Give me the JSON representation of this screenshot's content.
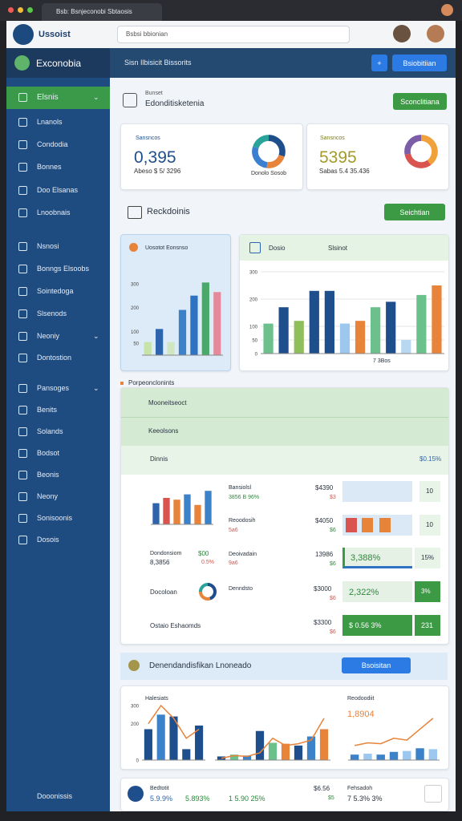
{
  "browser": {
    "tab": "Bsb: Bsnjeconobi Sbtaosis",
    "address": "Bsbsi bbionian"
  },
  "app": {
    "logo": "Ussoist",
    "brand": "Exconobia",
    "nav": "Sisn  Ilbisicit  Bissorits",
    "button": "Bsiobitiian"
  },
  "sidebar": {
    "items": [
      "Elsnis",
      "Lnanols",
      "Condodia",
      "Bonnes",
      "Doo Elsanas",
      "Lnoobnais",
      "Nsnosi",
      "Bonngs Elsoobs",
      "Sointedoga",
      "Slsenods",
      "Neoniy",
      "Dontostion",
      "Pansoges",
      "Benits",
      "Solands",
      "Bodsot",
      "Beonis",
      "Neony",
      "Sonisoonis",
      "Dosois"
    ],
    "footer": "Dooonissis"
  },
  "header": {
    "kicker": "Bunset",
    "title": "Edonditisketenia",
    "button": "Sconclitiana"
  },
  "kpis": [
    {
      "label": "Sansncos",
      "value": "0,395",
      "sub": "Abeso $ 5/ 3296",
      "note": "Donolo Sosob"
    },
    {
      "label": "Sansncos",
      "value": "5395",
      "sub": "Sabas 5.4 35.436"
    }
  ],
  "section1": {
    "title": "Reckdoinis",
    "button": "Seichtian"
  },
  "panels": {
    "left_title": "Uosotot Eonsnso",
    "right_tab1": "Dosio",
    "right_tab2": "Slsinot",
    "right_note": "7 3Bos"
  },
  "section2": {
    "title": "Porpeonclonints",
    "rows": [
      "Mooneitseoct",
      "Keeolsons"
    ],
    "summary": "Dinnis",
    "summary_value": "$0.15%"
  },
  "table": {
    "rows": [
      [
        "Bansiolsl",
        "3856 B 96%",
        "$4390",
        "$3",
        "10"
      ],
      [
        "Reoodosih",
        "5a6",
        "$4050",
        "$6",
        "10"
      ],
      [
        "Deoivadain",
        "9a6",
        "13986",
        "$6",
        "3,388%",
        "15%",
        "$00",
        "0.5%",
        "Dondonsiom",
        "8,3856"
      ],
      [
        "Docoloan",
        "Denndsto",
        "$3000",
        "$6",
        "2,322%",
        "3%"
      ],
      [
        "Ostaio Eshaomds",
        "$3300",
        "$6",
        "$ 0.56 3%",
        "231"
      ]
    ]
  },
  "section3": {
    "title": "Denendandisfikan Lnoneado",
    "button": "Bsoisitan"
  },
  "bottom": {
    "t1": "Halesiats",
    "t2": "Reodoodiit",
    "v2": "1,8904"
  },
  "footer": {
    "a": "Bedtotit",
    "b": "5.9.9%",
    "c": "5.893%",
    "d": "1 5.90 25%",
    "e": "$6.56",
    "f": "$5",
    "g": "Fehsadoh",
    "h": "7 5.3% 3%"
  },
  "chart_data": [
    {
      "type": "pie",
      "values": [
        30,
        22,
        28,
        20
      ],
      "colors": [
        "#1f4e8c",
        "#e8833a",
        "#3a7fd0",
        "#2aa39b"
      ]
    },
    {
      "type": "pie",
      "values": [
        40,
        32,
        28
      ],
      "colors": [
        "#f0a13a",
        "#d9534f",
        "#7b5ea7"
      ]
    },
    {
      "type": "bar",
      "values": [
        55,
        110,
        55,
        190,
        250,
        305,
        265
      ],
      "colors": [
        "#c8e3a8",
        "#2e64ad",
        "#cfe6c0",
        "#3b82c8",
        "#2e72c4",
        "#4aa86a",
        "#e58a9a"
      ],
      "ylim": [
        0,
        350
      ],
      "yticks": [
        50,
        100,
        200,
        300
      ]
    },
    {
      "type": "bar",
      "values": [
        110,
        170,
        120,
        230,
        230,
        110,
        120,
        170,
        190,
        50,
        215,
        250
      ],
      "colors": [
        "#6cc08b",
        "#1f4e8c",
        "#8fbf5a",
        "#1f4e8c",
        "#1f4e8c",
        "#9cc7ef",
        "#e8833a",
        "#6cc08b",
        "#1f4e8c",
        "#b8d7f0",
        "#6cc08b",
        "#e8833a"
      ],
      "ylim": [
        0,
        300
      ],
      "yticks": [
        0,
        50,
        100,
        200,
        300
      ],
      "grid": true
    },
    {
      "type": "bar",
      "values": [
        60,
        75,
        70,
        85,
        55,
        95
      ],
      "colors": [
        "#2e64ad",
        "#d9534f",
        "#e8833a",
        "#3b82c8",
        "#e8833a",
        "#3b82c8"
      ],
      "ylim": [
        0,
        100
      ]
    },
    {
      "type": "pie",
      "values": [
        45,
        30,
        25
      ],
      "colors": [
        "#1f4e8c",
        "#e8833a",
        "#2aa39b"
      ]
    },
    {
      "type": "bar",
      "values": [
        170,
        250,
        240,
        60,
        190
      ],
      "colors": [
        "#1f4e8c",
        "#3b82c8",
        "#1f4e8c",
        "#1f4e8c",
        "#1f4e8c"
      ],
      "line": [
        200,
        300,
        230,
        120,
        170
      ],
      "line_color": "#e8833a",
      "ylim": [
        0,
        300
      ],
      "yticks": [
        0,
        200,
        300
      ]
    },
    {
      "type": "bar",
      "values": [
        20,
        30,
        25,
        160,
        95,
        90,
        80,
        130,
        170
      ],
      "colors": [
        "#1f4e8c",
        "#6cc08b",
        "#3b82c8",
        "#1f4e8c",
        "#6cc08b",
        "#e8833a",
        "#1f4e8c",
        "#3b82c8",
        "#e8833a"
      ],
      "line": [
        10,
        25,
        20,
        40,
        120,
        80,
        90,
        110,
        230
      ],
      "line_color": "#e8833a",
      "ylim": [
        0,
        300
      ]
    },
    {
      "type": "bar",
      "values": [
        30,
        35,
        30,
        45,
        50,
        65,
        60
      ],
      "colors": [
        "#3b82c8",
        "#9cc7ef",
        "#3b82c8",
        "#3b82c8",
        "#9cc7ef",
        "#3b82c8",
        "#9cc7ef"
      ],
      "line": [
        80,
        95,
        90,
        120,
        110,
        170,
        230
      ],
      "line_color": "#e8833a",
      "ylim": [
        0,
        300
      ]
    }
  ]
}
